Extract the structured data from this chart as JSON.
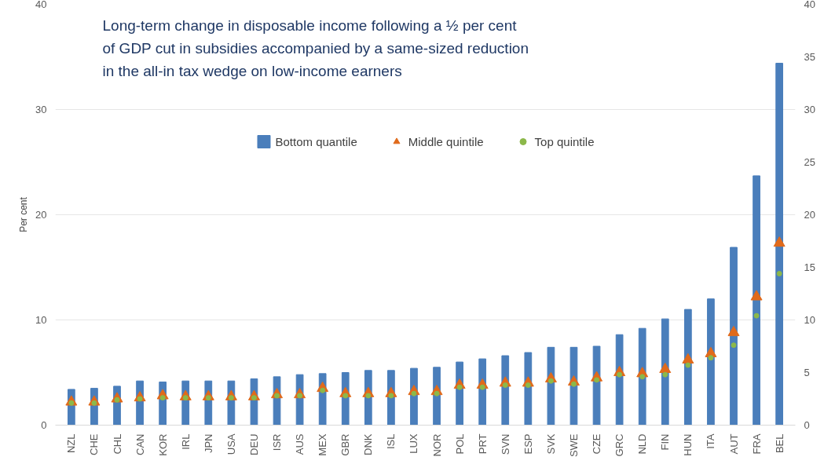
{
  "chart_data": {
    "type": "bar",
    "title": "Long-term change in disposable income following a ½ per cent of GDP cut in subsidies accompanied by a same-sized reduction in the all-in tax wedge on low-income earners",
    "ylabel": "Per cent",
    "categories": [
      "NZL",
      "CHE",
      "CHL",
      "CAN",
      "KOR",
      "IRL",
      "JPN",
      "USA",
      "DEU",
      "ISR",
      "AUS",
      "MEX",
      "GBR",
      "DNK",
      "ISL",
      "LUX",
      "NOR",
      "POL",
      "PRT",
      "SVN",
      "ESP",
      "SVK",
      "SWE",
      "CZE",
      "GRC",
      "NLD",
      "FIN",
      "HUN",
      "ITA",
      "AUT",
      "FRA",
      "BEL"
    ],
    "series": [
      {
        "name": "Bottom quantile",
        "color": "#4a7ebb",
        "values": [
          3.4,
          3.5,
          3.7,
          4.2,
          4.1,
          4.2,
          4.2,
          4.2,
          4.4,
          4.6,
          4.8,
          4.9,
          5.0,
          5.2,
          5.2,
          5.4,
          5.5,
          6.0,
          6.3,
          6.6,
          6.9,
          7.4,
          7.4,
          7.5,
          8.6,
          9.2,
          10.1,
          11.0,
          12.0,
          16.9,
          23.7,
          34.4
        ]
      },
      {
        "name": "Middle quintile",
        "type": "scatter",
        "marker": "triangle",
        "color": "#e06a1b",
        "values": [
          2.2,
          2.2,
          2.5,
          2.6,
          2.8,
          2.7,
          2.7,
          2.7,
          2.7,
          2.9,
          2.9,
          3.5,
          3.0,
          3.0,
          3.0,
          3.2,
          3.2,
          3.8,
          3.8,
          4.0,
          4.0,
          4.4,
          4.1,
          4.5,
          5.0,
          4.9,
          5.3,
          6.2,
          6.8,
          8.8,
          12.2,
          17.3
        ]
      },
      {
        "name": "Top quintile",
        "type": "scatter",
        "marker": "circle",
        "color": "#8cb84a",
        "values": [
          2.1,
          2.1,
          2.4,
          2.5,
          2.6,
          2.6,
          2.6,
          2.6,
          2.6,
          2.8,
          2.8,
          3.3,
          2.8,
          2.8,
          2.8,
          3.0,
          3.0,
          3.6,
          3.6,
          3.8,
          3.8,
          4.2,
          3.9,
          4.3,
          4.8,
          4.6,
          4.8,
          5.7,
          6.4,
          7.6,
          10.4,
          14.4
        ]
      }
    ],
    "ylim": [
      0,
      40
    ],
    "yticks": [
      0,
      10,
      20,
      30,
      40
    ],
    "y2lim": [
      0,
      40
    ],
    "y2ticks": [
      0,
      5,
      10,
      15,
      20,
      25,
      30,
      35,
      40
    ],
    "grid": "y",
    "legend": "top"
  }
}
